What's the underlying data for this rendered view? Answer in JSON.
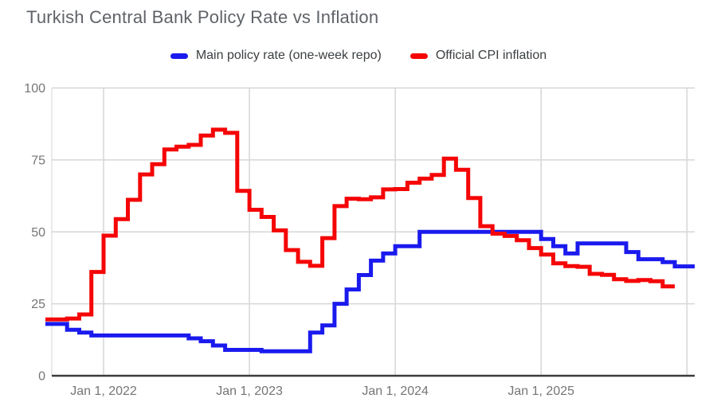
{
  "title": "Turkish Central Bank Policy Rate vs Inflation",
  "colors": {
    "background": "#ffffff",
    "title_text": "#5f6368",
    "legend_text": "#3c4043",
    "axis_text": "#757575",
    "gridline": "#d6d6d6",
    "axis_line": "#3c3c3c",
    "policy_rate_blue": "#1a1aee",
    "cpi_red": "#f50505"
  },
  "legend": {
    "items": [
      {
        "label": "Main policy rate (one-week repo)",
        "color": "#1a1aee"
      },
      {
        "label": "Official CPI inflation",
        "color": "#f50505"
      }
    ]
  },
  "chart_data": {
    "type": "line",
    "step_style": "step-after",
    "title": "Turkish Central Bank Policy Rate vs Inflation",
    "xlabel": "",
    "ylabel": "",
    "ylim": [
      0,
      100
    ],
    "grid": true,
    "legend_position": "top-center",
    "x_frequency": "monthly",
    "y_ticks": [
      {
        "value": 100,
        "label": "100"
      },
      {
        "value": 75,
        "label": "75"
      },
      {
        "value": 50,
        "label": "50"
      },
      {
        "value": 25,
        "label": "25"
      },
      {
        "value": 0,
        "label": "0"
      }
    ],
    "x_tick_labels": [
      {
        "month": "2022-01",
        "label": "Jan 1, 2022"
      },
      {
        "month": "2023-01",
        "label": "Jan 1, 2023"
      },
      {
        "month": "2024-01",
        "label": "Jan 1, 2024"
      },
      {
        "month": "2025-01",
        "label": "Jan 1, 2025"
      }
    ],
    "x_gridline_months": [
      "2022-01",
      "2023-01",
      "2024-01",
      "2025-01",
      "2026-01"
    ],
    "series": [
      {
        "name": "Main policy rate (one-week repo)",
        "color": "#1a1aee",
        "x_start_month": "2021-09",
        "extend_to_edge": true,
        "values": [
          18,
          16,
          15,
          14,
          14,
          14,
          14,
          14,
          14,
          14,
          14,
          13,
          12,
          10.5,
          9,
          9,
          9,
          8.5,
          8.5,
          8.5,
          8.5,
          15,
          17.5,
          25,
          30,
          35,
          40,
          42.5,
          45,
          45,
          50,
          50,
          50,
          50,
          50,
          50,
          50,
          50,
          50,
          50,
          47.5,
          45,
          42.5,
          46,
          46,
          46,
          46,
          43,
          40.5,
          40.5,
          39.5,
          38
        ]
      },
      {
        "name": "Official CPI inflation",
        "color": "#f50505",
        "x_start_month": "2021-09",
        "extend_to_edge": false,
        "values": [
          19.58,
          19.89,
          21.31,
          36.08,
          48.69,
          54.44,
          61.14,
          69.97,
          73.5,
          78.62,
          79.6,
          80.21,
          83.45,
          85.51,
          84.39,
          64.27,
          57.68,
          55.18,
          50.51,
          43.68,
          39.59,
          38.21,
          47.83,
          58.94,
          61.53,
          61.36,
          61.98,
          64.77,
          64.86,
          67.07,
          68.5,
          69.8,
          75.45,
          71.6,
          61.78,
          51.97,
          49.38,
          48.58,
          47.09,
          44.38,
          42.12,
          39.05,
          38.1,
          37.86,
          35.41,
          35.05,
          33.52,
          32.95,
          33.29,
          32.87,
          31.07
        ]
      }
    ]
  }
}
